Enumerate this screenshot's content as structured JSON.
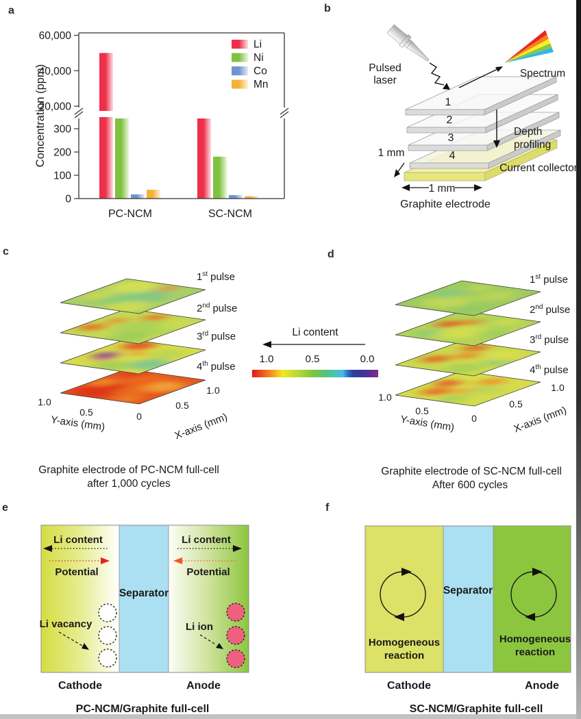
{
  "letters": {
    "a": "a",
    "b": "b",
    "c": "c",
    "d": "d",
    "e": "e",
    "f": "f"
  },
  "chart_data": {
    "type": "bar",
    "title": "",
    "xlabel": "",
    "ylabel": "Concentration (ppm)",
    "categories": [
      "PC-NCM",
      "SC-NCM"
    ],
    "series": [
      {
        "name": "Li",
        "color": "#ee2f4a",
        "fade": "#fcdde3",
        "values": [
          50000,
          350
        ],
        "clipped_at_break": [
          false,
          true
        ]
      },
      {
        "name": "Ni",
        "color": "#7fc241",
        "fade": "#eaf6da",
        "values": [
          350,
          180
        ],
        "clipped_at_break": [
          true,
          false
        ]
      },
      {
        "name": "Co",
        "color": "#6e94d2",
        "fade": "#e5edf8",
        "values": [
          18,
          15
        ],
        "clipped_at_break": [
          false,
          false
        ]
      },
      {
        "name": "Mn",
        "color": "#f3b23a",
        "fade": "#fdf3d6",
        "values": [
          38,
          10
        ],
        "clipped_at_break": [
          false,
          false
        ]
      }
    ],
    "axis_break": {
      "lower_range": [
        0,
        350
      ],
      "upper_range": [
        20000,
        60000
      ],
      "lower_ticks": [
        {
          "v": 0,
          "label": "0"
        },
        {
          "v": 100,
          "label": "100"
        },
        {
          "v": 200,
          "label": "200"
        },
        {
          "v": 300,
          "label": "300"
        }
      ],
      "upper_ticks": [
        {
          "v": 20000,
          "label": "20,000"
        },
        {
          "v": 40000,
          "label": "40,000"
        },
        {
          "v": 60000,
          "label": "60,000"
        }
      ]
    },
    "legend_position": "top-right",
    "grid": false
  },
  "panel_b": {
    "laser_lines": [
      "Pulsed",
      "laser"
    ],
    "spectrum_label": "Spectrum",
    "plate_numbers": [
      "1",
      "2",
      "3",
      "4"
    ],
    "depth_lines": [
      "Depth",
      "profiling"
    ],
    "collector_label": "Current collector",
    "side_scale": "1 mm",
    "width_scale": "1 mm",
    "caption": "Graphite electrode",
    "spectrum_colors": [
      "#e8251f",
      "#f58220",
      "#fdee21",
      "#8dc63f",
      "#30b8ea"
    ],
    "colors": {
      "plate_top": "#f7f7f7",
      "plate4_top": "#f3f3dc",
      "collector_top": "#f1f1a2",
      "collector_front": "#e6e67e",
      "collector_side": "#dcdc6a"
    }
  },
  "colorbar": {
    "title": "Li content",
    "ticks": [
      "1.0",
      "0.5",
      "0.0"
    ],
    "gradient_left_to_right": "high Li (red) to low Li (purple)"
  },
  "panel_c": {
    "pulses": [
      {
        "ord": "1",
        "sup": "st",
        "rest": "pulse"
      },
      {
        "ord": "2",
        "sup": "nd",
        "rest": "pulse"
      },
      {
        "ord": "3",
        "sup": "rd",
        "rest": "pulse"
      },
      {
        "ord": "4",
        "sup": "th",
        "rest": "pulse"
      }
    ],
    "y_axis": {
      "title": "Y-axis (mm)",
      "ticks": [
        "1.0",
        "0.5",
        "0"
      ]
    },
    "x_axis": {
      "title": "X-axis (mm)",
      "ticks": [
        "0.5",
        "1.0"
      ]
    },
    "caption_lines": [
      "Graphite electrode of PC-NCM full-cell",
      "after 1,000 cycles"
    ],
    "layers": [
      {
        "base": "#a8cf66",
        "blobs": [
          [
            0.5,
            0.48,
            0.34,
            "#6fc394",
            0.55
          ],
          [
            0.16,
            0.28,
            0.22,
            "#d8e04e",
            0.75
          ],
          [
            0.78,
            0.72,
            0.24,
            "#e2e44e",
            0.75
          ],
          [
            0.38,
            0.82,
            0.16,
            "#e6da44",
            0.6
          ],
          [
            0.88,
            0.38,
            0.1,
            "#ee8a2b",
            0.85
          ],
          [
            0.28,
            0.6,
            0.16,
            "#8fd06e",
            0.5
          ]
        ]
      },
      {
        "base": "#c4d855",
        "blobs": [
          [
            0.3,
            0.85,
            0.13,
            "#ec6a20",
            0.9
          ],
          [
            0.6,
            0.78,
            0.1,
            "#ee7d24",
            0.8
          ],
          [
            0.86,
            0.52,
            0.12,
            "#ec6a20",
            0.85
          ],
          [
            0.48,
            0.35,
            0.3,
            "#9ccf58",
            0.6
          ],
          [
            0.12,
            0.25,
            0.2,
            "#88c95e",
            0.55
          ],
          [
            0.7,
            0.15,
            0.15,
            "#d8e04e",
            0.5
          ]
        ]
      },
      {
        "base": "#d6dc4b",
        "blobs": [
          [
            0.42,
            0.78,
            0.12,
            "#8e3a96",
            0.92
          ],
          [
            0.3,
            0.7,
            0.1,
            "#c0589a",
            0.5
          ],
          [
            0.85,
            0.72,
            0.17,
            "#e54a1e",
            0.85
          ],
          [
            0.6,
            0.52,
            0.08,
            "#ee7d24",
            0.7
          ],
          [
            0.33,
            0.14,
            0.2,
            "#62c1a6",
            0.7
          ],
          [
            0.12,
            0.45,
            0.2,
            "#8cc75e",
            0.6
          ],
          [
            0.7,
            0.25,
            0.18,
            "#a5d055",
            0.5
          ]
        ]
      },
      {
        "base": "#e6571f",
        "blobs": [
          [
            0.25,
            0.7,
            0.28,
            "#dd2f15",
            0.85
          ],
          [
            0.72,
            0.5,
            0.24,
            "#ee6c1e",
            0.7
          ],
          [
            0.5,
            0.88,
            0.14,
            "#f29d28",
            0.7
          ],
          [
            0.62,
            0.2,
            0.2,
            "#f0b63c",
            0.75
          ],
          [
            0.1,
            0.24,
            0.14,
            "#ee8a2b",
            0.7
          ],
          [
            0.88,
            0.82,
            0.12,
            "#de3a18",
            0.8
          ],
          [
            0.35,
            0.4,
            0.18,
            "#ef7f22",
            0.6
          ]
        ]
      }
    ]
  },
  "panel_d": {
    "pulses": [
      {
        "ord": "1",
        "sup": "st",
        "rest": "pulse"
      },
      {
        "ord": "2",
        "sup": "nd",
        "rest": "pulse"
      },
      {
        "ord": "3",
        "sup": "rd",
        "rest": "pulse"
      },
      {
        "ord": "4",
        "sup": "th",
        "rest": "pulse"
      }
    ],
    "y_axis": {
      "title": "Y-axis (mm)",
      "ticks": [
        "1.0",
        "0.5",
        "0"
      ]
    },
    "x_axis": {
      "title": "X-axis (mm)",
      "ticks": [
        "0.5",
        "1.0"
      ]
    },
    "caption_lines": [
      "Graphite electrode of SC-NCM full-cell",
      "After 600 cycles"
    ],
    "layers": [
      {
        "base": "#9ecb5f",
        "blobs": [
          [
            0.3,
            0.6,
            0.24,
            "#cfdb54",
            0.7
          ],
          [
            0.68,
            0.3,
            0.2,
            "#c8d955",
            0.6
          ],
          [
            0.55,
            0.78,
            0.17,
            "#79c58c",
            0.5
          ],
          [
            0.18,
            0.22,
            0.15,
            "#8cc962",
            0.5
          ],
          [
            0.85,
            0.65,
            0.12,
            "#d8e04e",
            0.55
          ]
        ]
      },
      {
        "base": "#b4d359",
        "blobs": [
          [
            0.55,
            0.78,
            0.13,
            "#e45c1d",
            0.9
          ],
          [
            0.7,
            0.62,
            0.11,
            "#ee7d24",
            0.8
          ],
          [
            0.35,
            0.45,
            0.24,
            "#dde14c",
            0.7
          ],
          [
            0.18,
            0.75,
            0.14,
            "#74c58c",
            0.5
          ],
          [
            0.85,
            0.3,
            0.12,
            "#dde14c",
            0.6
          ],
          [
            0.45,
            0.15,
            0.16,
            "#8fca5c",
            0.5
          ]
        ]
      },
      {
        "base": "#ccd94e",
        "blobs": [
          [
            0.35,
            0.78,
            0.14,
            "#e4611e",
            0.85
          ],
          [
            0.58,
            0.58,
            0.12,
            "#ee7d24",
            0.8
          ],
          [
            0.85,
            0.7,
            0.13,
            "#e4571d",
            0.8
          ],
          [
            0.18,
            0.3,
            0.18,
            "#93cb5c",
            0.6
          ],
          [
            0.5,
            0.14,
            0.14,
            "#74c58c",
            0.5
          ],
          [
            0.75,
            0.25,
            0.16,
            "#e2e24c",
            0.6
          ]
        ]
      },
      {
        "base": "#d5dc4d",
        "blobs": [
          [
            0.28,
            0.72,
            0.15,
            "#e8661d",
            0.85
          ],
          [
            0.58,
            0.82,
            0.13,
            "#e4521c",
            0.85
          ],
          [
            0.8,
            0.46,
            0.14,
            "#ee8824",
            0.75
          ],
          [
            0.14,
            0.38,
            0.16,
            "#96cc5a",
            0.6
          ],
          [
            0.52,
            0.3,
            0.18,
            "#afd25a",
            0.6
          ],
          [
            0.88,
            0.78,
            0.1,
            "#e2e24c",
            0.6
          ],
          [
            0.4,
            0.5,
            0.12,
            "#ee9a28",
            0.6
          ]
        ]
      }
    ]
  },
  "panel_e": {
    "cathode": {
      "li_content": "Li content",
      "potential": "Potential",
      "marker_label": "Li vacancy",
      "electrode": "Cathode"
    },
    "anode": {
      "li_content": "Li content",
      "potential": "Potential",
      "marker_label": "Li ion",
      "electrode": "Anode"
    },
    "separator": "Separator",
    "caption": "PC-NCM/Graphite full-cell",
    "colors": {
      "separator": "#abdff2",
      "ion_fill": "#ef5f7e",
      "vacancy_fill": "#ffffff",
      "potential_left": "#e8211d",
      "potential_right": "#f15a24"
    }
  },
  "panel_f": {
    "cathode_lines": [
      "Homogeneous",
      "reaction"
    ],
    "anode_lines": [
      "Homogeneous",
      "reaction"
    ],
    "separator": "Separator",
    "cathode": "Cathode",
    "anode": "Anode",
    "caption": "SC-NCM/Graphite full-cell",
    "colors": {
      "cathode": "#dce167",
      "separator": "#abdff2",
      "anode": "#8cc63f"
    }
  },
  "gradients": {
    "metal": [
      [
        0,
        "#ffffff"
      ],
      [
        0.5,
        "#d6d6d6"
      ],
      [
        1,
        "#a8a8a8"
      ]
    ],
    "cath_e": [
      [
        0,
        "#d3dd42"
      ],
      [
        0.5,
        "#e7ec90"
      ],
      [
        1,
        "#ffffff"
      ]
    ],
    "anode_e": [
      [
        0,
        "#fdfdf8"
      ],
      [
        0.5,
        "#cfe29c"
      ],
      [
        1,
        "#8cc63f"
      ]
    ],
    "colorbar": [
      [
        0,
        "#dc1a1a"
      ],
      [
        0.07,
        "#e94e1e"
      ],
      [
        0.15,
        "#f4901e"
      ],
      [
        0.24,
        "#f0e822"
      ],
      [
        0.36,
        "#b8d938"
      ],
      [
        0.48,
        "#7cc63e"
      ],
      [
        0.58,
        "#54c27c"
      ],
      [
        0.66,
        "#49c4b4"
      ],
      [
        0.72,
        "#45b9e8"
      ],
      [
        0.76,
        "#2f6cc4"
      ],
      [
        0.8,
        "#2f3f9e"
      ],
      [
        0.88,
        "#3f3399"
      ],
      [
        0.93,
        "#5c2d91"
      ],
      [
        1,
        "#7c2f8e"
      ]
    ]
  }
}
